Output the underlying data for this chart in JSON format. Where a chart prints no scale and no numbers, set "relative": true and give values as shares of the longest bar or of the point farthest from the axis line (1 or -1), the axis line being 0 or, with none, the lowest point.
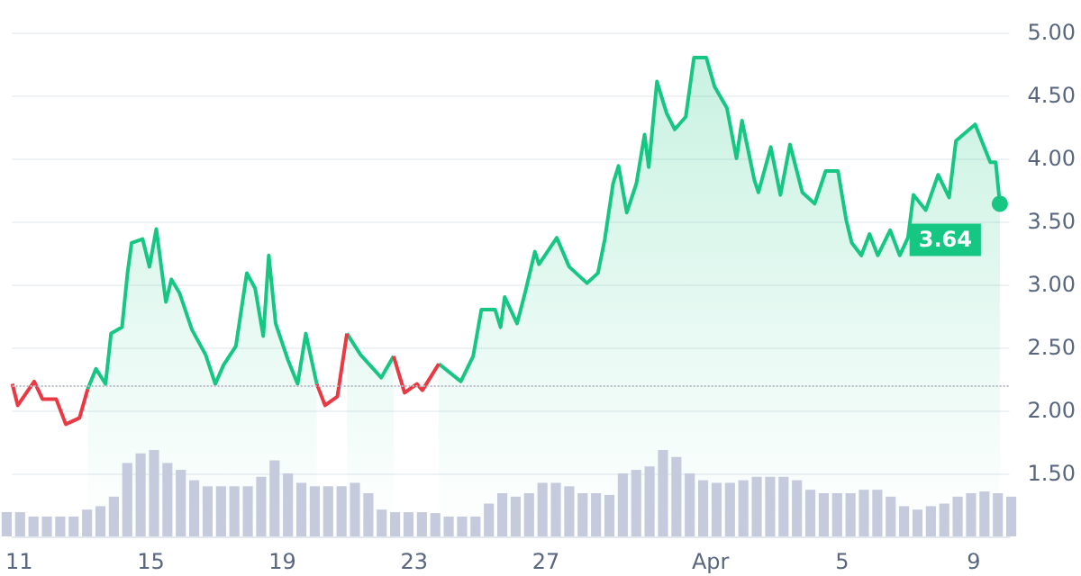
{
  "chart_data": [
    {
      "type": "line",
      "xlim": [
        "--03-10T19:00",
        "--04-10T02:00"
      ],
      "xticks": [
        {
          "value": "--03-11",
          "label": "11"
        },
        {
          "value": "--03-15",
          "label": "15"
        },
        {
          "value": "--03-19",
          "label": "19"
        },
        {
          "value": "--03-23",
          "label": "23"
        },
        {
          "value": "--03-27",
          "label": "27"
        },
        {
          "value": "--04-01",
          "label": "Apr"
        },
        {
          "value": "--04-05",
          "label": "5"
        },
        {
          "value": "--04-09",
          "label": "9"
        }
      ],
      "ylim": [
        1.0,
        5.0
      ],
      "yticks": [
        {
          "value": 1.5,
          "label": "1.50"
        },
        {
          "value": 2,
          "label": "2.00"
        },
        {
          "value": 2.5,
          "label": "2.50"
        },
        {
          "value": 3,
          "label": "3.00"
        },
        {
          "value": 3.5,
          "label": "3.50"
        },
        {
          "value": 4,
          "label": "4.00"
        },
        {
          "value": 4.5,
          "label": "4.50"
        },
        {
          "value": 5,
          "label": "5.00"
        }
      ],
      "grid": "y",
      "line_style": "solid",
      "x": [
        "--03-10T19:00",
        "--03-10T23:00",
        "--03-11T11:00",
        "--03-11T17:00",
        "--03-12T03:00",
        "--03-12T10:00",
        "--03-12T20:00",
        "--03-13T02:00",
        "--03-13T08:00",
        "--03-13T15:00",
        "--03-13T19:00",
        "--03-14T03:00",
        "--03-14T07:00",
        "--03-14T10:00",
        "--03-14T18:00",
        "--03-14T23:00",
        "--03-15T04:00",
        "--03-15T11:00",
        "--03-15T15:00",
        "--03-15T21:00",
        "--03-16T06:00",
        "--03-16T16:00",
        "--03-16T23:00",
        "--03-17T05:00",
        "--03-17T14:00",
        "--03-17T22:00",
        "--03-18T04:00",
        "--03-18T10:00",
        "--03-18T14:00",
        "--03-18T19:00",
        "--03-19T04:00",
        "--03-19T11:00",
        "--03-19T17:00",
        "--03-20T01:00",
        "--03-20T07:00",
        "--03-20T16:00",
        "--03-20T23:00",
        "--03-21T09:00",
        "--03-22T00:00",
        "--03-22T09:00",
        "--03-22T17:00",
        "--03-23T02:00",
        "--03-23T06:00",
        "--03-23T18:00",
        "--03-24T10:00",
        "--03-24T19:00",
        "--03-25T01:00",
        "--03-25T11:00",
        "--03-25T15:00",
        "--03-25T18:00",
        "--03-26T03:00",
        "--03-26T09:00",
        "--03-26T16:00",
        "--03-26T19:00",
        "--03-27T08:00",
        "--03-27T17:00",
        "--03-28T06:00",
        "--03-28T14:00",
        "--03-28T19:00",
        "--03-29T01:00",
        "--03-29T05:00",
        "--03-29T11:00",
        "--03-29T18:00",
        "--03-30T00:00",
        "--03-30T03:00",
        "--03-30T09:00",
        "--03-30T16:00",
        "--03-30T22:00",
        "--03-31T06:00",
        "--03-31T12:00",
        "--03-31T21:00",
        "--04-01T03:00",
        "--04-01T12:00",
        "--04-01T19:00",
        "--04-01T23:00",
        "--04-02T08:00",
        "--04-02T11:00",
        "--04-02T20:00",
        "--04-03T03:00",
        "--04-03T10:00",
        "--04-03T19:00",
        "--04-04T04:00",
        "--04-04T12:00",
        "--04-04T21:00",
        "--04-05T03:00",
        "--04-05T07:00",
        "--04-05T14:00",
        "--04-05T20:00",
        "--04-06T02:00",
        "--04-06T11:00",
        "--04-06T18:00",
        "--04-07T00:00",
        "--04-07T04:00",
        "--04-07T13:00",
        "--04-07T22:00",
        "--04-08T06:00",
        "--04-08T11:00",
        "--04-09T01:00",
        "--04-09T12:00",
        "--04-09T16:00",
        "--04-09T19:00"
      ],
      "series": [
        {
          "type": "area",
          "color": "#16c784",
          "values": [
            null,
            null,
            null,
            null,
            null,
            null,
            null,
            2.17,
            2.33,
            2.21,
            2.61,
            2.66,
            3.09,
            3.33,
            3.36,
            3.14,
            3.44,
            2.86,
            3.04,
            2.93,
            2.64,
            2.44,
            2.21,
            2.36,
            2.51,
            3.09,
            2.97,
            2.59,
            3.23,
            2.69,
            2.4,
            2.21,
            2.61,
            2.21,
            null,
            null,
            2.61,
            2.44,
            2.26,
            2.43,
            null,
            null,
            null,
            2.37,
            2.23,
            2.43,
            2.8,
            2.8,
            2.66,
            2.9,
            2.69,
            2.94,
            3.26,
            3.16,
            3.37,
            3.14,
            3.01,
            3.09,
            3.36,
            3.8,
            3.94,
            3.57,
            3.8,
            4.19,
            3.93,
            4.61,
            4.36,
            4.23,
            4.33,
            4.8,
            4.8,
            4.57,
            4.4,
            4.0,
            4.3,
            3.83,
            3.73,
            4.09,
            3.71,
            4.11,
            3.73,
            3.64,
            3.9,
            3.9,
            3.51,
            3.33,
            3.23,
            3.4,
            3.23,
            3.43,
            3.23,
            3.37,
            3.71,
            3.59,
            3.87,
            3.69,
            4.14,
            4.27,
            3.97,
            3.97,
            3.64
          ],
          "value_labels": [
            null,
            null,
            null,
            null,
            null,
            null,
            null,
            null,
            null,
            null,
            null,
            null,
            null,
            null,
            null,
            null,
            null,
            null,
            null,
            null,
            null,
            null,
            null,
            null,
            null,
            null,
            null,
            null,
            null,
            null,
            null,
            null,
            null,
            null,
            null,
            null,
            null,
            null,
            null,
            null,
            null,
            null,
            null,
            null,
            null,
            null,
            null,
            null,
            null,
            null,
            null,
            null,
            null,
            null,
            null,
            null,
            null,
            null,
            null,
            null,
            null,
            null,
            null,
            null,
            null,
            null,
            null,
            null,
            null,
            null,
            null,
            null,
            null,
            null,
            null,
            null,
            null,
            null,
            null,
            null,
            null,
            null,
            null,
            null,
            null,
            null,
            null,
            null,
            null,
            null,
            null,
            null,
            null,
            null,
            null,
            null,
            null,
            null,
            null,
            null,
            "3.64"
          ]
        },
        {
          "type": "line",
          "color": "#ea3943",
          "values": [
            2.21,
            2.04,
            2.23,
            2.09,
            2.09,
            1.89,
            1.94,
            2.17,
            null,
            null,
            null,
            null,
            null,
            null,
            null,
            null,
            null,
            null,
            null,
            null,
            null,
            null,
            null,
            null,
            null,
            null,
            null,
            null,
            null,
            null,
            null,
            null,
            null,
            2.21,
            2.04,
            2.11,
            2.61,
            null,
            null,
            2.43,
            2.14,
            2.21,
            2.16,
            2.37,
            null,
            null,
            null,
            null,
            null,
            null,
            null,
            null,
            null,
            null,
            null,
            null,
            null,
            null,
            null,
            null,
            null,
            null,
            null,
            null,
            null,
            null,
            null,
            null,
            null,
            null,
            null,
            null,
            null,
            null,
            null,
            null,
            null,
            null,
            null,
            null,
            null,
            null,
            null,
            null,
            null,
            null,
            null,
            null,
            null,
            null,
            null,
            null,
            null,
            null,
            null,
            null,
            null,
            null,
            null,
            null,
            null
          ]
        }
      ],
      "ref_lines": [
        {
          "axis": "y",
          "value": 2.19,
          "color": "#b8bcc6",
          "line_style": "dotted"
        }
      ]
    },
    {
      "type": "bar",
      "relative": true,
      "color": "#c5cbdd",
      "categories": [
        null,
        null,
        null,
        null,
        null,
        null,
        null,
        null,
        null,
        null,
        null,
        null,
        null,
        null,
        null,
        null,
        null,
        null,
        null,
        null,
        null,
        null,
        null,
        null,
        null,
        null,
        null,
        null,
        null,
        null,
        null,
        null,
        null,
        null,
        null,
        null,
        null,
        null,
        null,
        null,
        null,
        null,
        null,
        null,
        null,
        null,
        null,
        null,
        null,
        null,
        null,
        null,
        null,
        null,
        null,
        null,
        null,
        null,
        null,
        null,
        null,
        null,
        null,
        null,
        null,
        null,
        null,
        null,
        null,
        null,
        null,
        null,
        null,
        null,
        null,
        null
      ],
      "values": [
        0.28,
        0.28,
        0.23,
        0.23,
        0.23,
        0.23,
        0.31,
        0.35,
        0.46,
        0.85,
        0.96,
        1,
        0.85,
        0.77,
        0.65,
        0.58,
        0.58,
        0.58,
        0.58,
        0.69,
        0.88,
        0.73,
        0.62,
        0.58,
        0.58,
        0.58,
        0.62,
        0.5,
        0.31,
        0.28,
        0.28,
        0.28,
        0.27,
        0.23,
        0.23,
        0.23,
        0.38,
        0.5,
        0.46,
        0.5,
        0.62,
        0.62,
        0.58,
        0.5,
        0.5,
        0.48,
        0.73,
        0.77,
        0.81,
        1,
        0.92,
        0.73,
        0.65,
        0.62,
        0.62,
        0.65,
        0.69,
        0.69,
        0.69,
        0.65,
        0.54,
        0.5,
        0.5,
        0.5,
        0.54,
        0.54,
        0.46,
        0.35,
        0.31,
        0.35,
        0.38,
        0.46,
        0.5,
        0.52,
        0.5,
        0.46
      ]
    }
  ]
}
